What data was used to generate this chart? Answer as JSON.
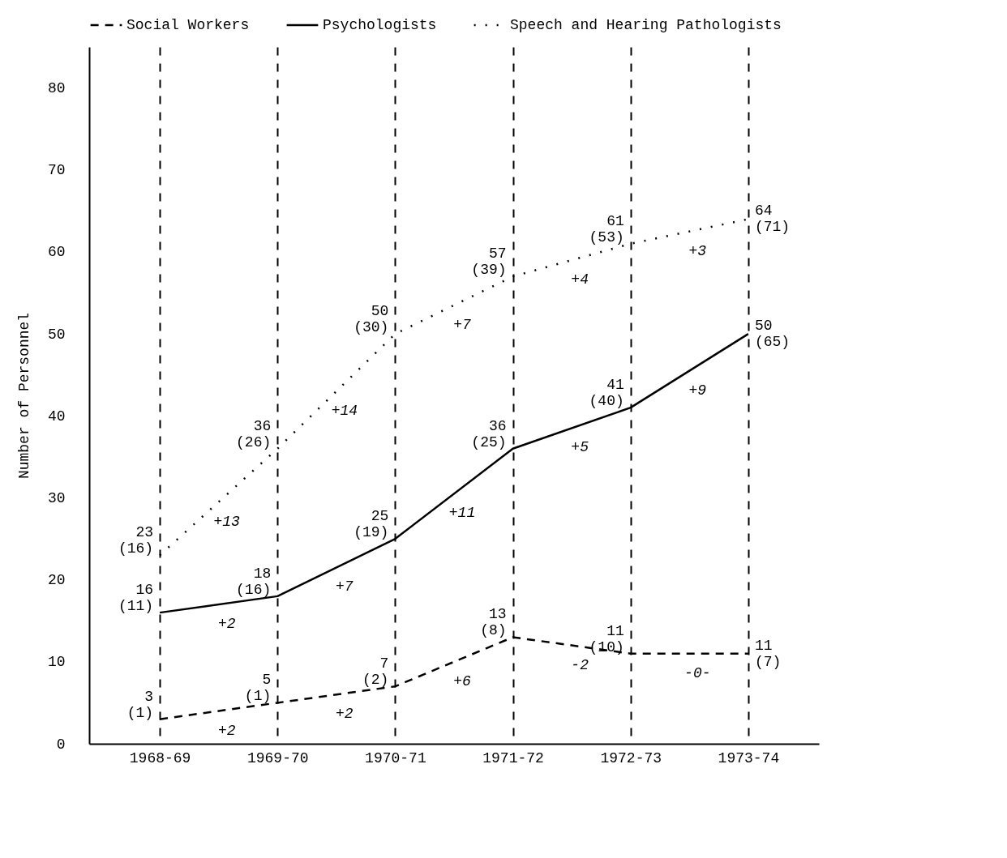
{
  "chart_data": {
    "type": "line",
    "ylabel": "Number of Personnel",
    "categories": [
      "1968-69",
      "1969-70",
      "1970-71",
      "1971-72",
      "1972-73",
      "1973-74"
    ],
    "series": [
      {
        "name": "Social Workers",
        "color": "#000000",
        "line_style": "dashed",
        "values": [
          3,
          5,
          7,
          13,
          11,
          11
        ],
        "value_labels": [
          "3 (1)",
          "5 (1)",
          "7 (2)",
          "13 (8)",
          "11 (10)",
          "11 (7)"
        ]
      },
      {
        "name": "Psychologists",
        "color": "#000000",
        "line_style": "solid",
        "values": [
          16,
          18,
          25,
          36,
          41,
          50
        ],
        "value_labels": [
          "16 (11)",
          "18 (16)",
          "25 (19)",
          "36 (25)",
          "41 (40)",
          "50 (65)"
        ]
      },
      {
        "name": "Speech and Hearing Pathologists",
        "color": "#000000",
        "line_style": "dotted",
        "values": [
          23,
          36,
          50,
          57,
          61,
          64
        ],
        "value_labels": [
          "23 (16)",
          "36 (26)",
          "50 (30)",
          "57 (39)",
          "61 (53)",
          "64 (71)"
        ]
      }
    ],
    "annotations": [
      "+2",
      "+2",
      "+6",
      "-2",
      "-0-",
      "+2",
      "+7",
      "+11",
      "+5",
      "+9",
      "+13",
      "+14",
      "+7",
      "+4",
      "+3"
    ],
    "ylim": [
      0,
      85
    ],
    "yticks": [
      0,
      10,
      20,
      30,
      40,
      50,
      60,
      70,
      80
    ],
    "grid": "x",
    "legend": "top"
  }
}
